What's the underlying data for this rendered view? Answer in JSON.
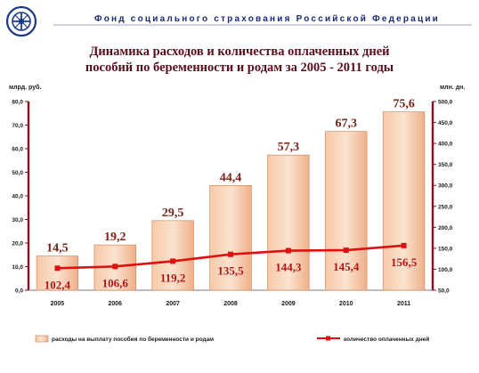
{
  "header": {
    "org_title": "Фонд социального страхования Российской Федерации",
    "logo_icon": "fss-emblem-icon"
  },
  "chart_data": {
    "type": "bar",
    "title_line1": "Динамика расходов и количества оплаченных дней",
    "title_line2": "пособий по беременности и родам  за 2005 - 2011 годы",
    "categories": [
      "2005",
      "2006",
      "2007",
      "2008",
      "2009",
      "2010",
      "2011"
    ],
    "series": [
      {
        "name": "расходы на выплату пособия по беременности и родам",
        "type": "bar",
        "axis": "left",
        "values": [
          14.5,
          19.2,
          29.5,
          44.4,
          57.3,
          67.3,
          75.6
        ],
        "labels": [
          "14,5",
          "19,2",
          "29,5",
          "44,4",
          "57,3",
          "67,3",
          "75,6"
        ],
        "color": "#f2b890"
      },
      {
        "name": "количество оплаченных дней",
        "type": "line",
        "axis": "right",
        "values": [
          102.4,
          106.6,
          119.2,
          135.5,
          144.3,
          145.4,
          156.5
        ],
        "labels": [
          "102,4",
          "106,6",
          "119,2",
          "135,5",
          "144,3",
          "145,4",
          "156,5"
        ],
        "color": "#e01010"
      }
    ],
    "y_left": {
      "label": "млрд. руб.",
      "range": [
        0,
        80
      ],
      "ticks": [
        0,
        10,
        20,
        30,
        40,
        50,
        60,
        70,
        80
      ],
      "tick_labels": [
        "0,0",
        "10,0",
        "20,0",
        "30,0",
        "40,0",
        "50,0",
        "60,0",
        "70,0",
        "80,0"
      ]
    },
    "y_right": {
      "label": "млн. дн.",
      "range": [
        50,
        500
      ],
      "ticks": [
        50,
        100,
        150,
        200,
        250,
        300,
        350,
        400,
        450,
        500
      ],
      "tick_labels": [
        "50,0",
        "100,0",
        "150,0",
        "200,0",
        "250,0",
        "300,0",
        "350,0",
        "400,0",
        "450,0",
        "500,0"
      ]
    },
    "grid": false,
    "legend_position": "bottom",
    "axis_color": "#8b1020"
  }
}
